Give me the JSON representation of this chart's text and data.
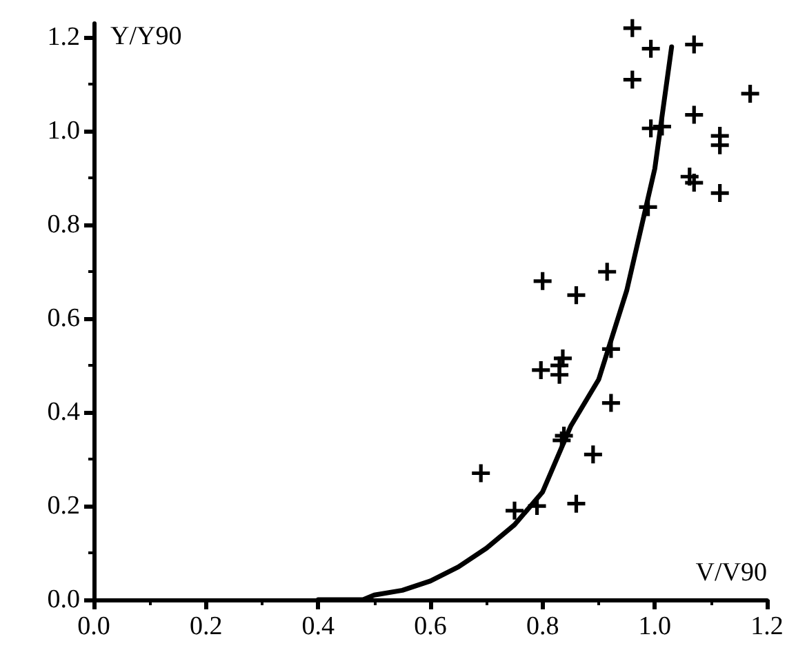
{
  "chart_data": {
    "type": "scatter",
    "xlabel": "V/V90",
    "ylabel": "Y/Y90",
    "grid": false,
    "xlim": [
      0,
      1.2
    ],
    "ylim": [
      0,
      1.23
    ],
    "xticks": [
      {
        "value": 0,
        "label": "0.0"
      },
      {
        "value": 0.2,
        "label": "0.2"
      },
      {
        "value": 0.4,
        "label": "0.4"
      },
      {
        "value": 0.6,
        "label": "0.6"
      },
      {
        "value": 0.8,
        "label": "0.8"
      },
      {
        "value": 1.0,
        "label": "1.0"
      },
      {
        "value": 1.2,
        "label": "1.2"
      }
    ],
    "yticks": [
      {
        "value": 0,
        "label": "0.0"
      },
      {
        "value": 0.2,
        "label": "0.2"
      },
      {
        "value": 0.4,
        "label": "0.4"
      },
      {
        "value": 0.6,
        "label": "0.6"
      },
      {
        "value": 0.8,
        "label": "0.8"
      },
      {
        "value": 1.0,
        "label": "1.0"
      },
      {
        "value": 1.2,
        "label": "1.2"
      }
    ],
    "series": [
      {
        "color": "#000000",
        "marker": "cross",
        "x": [
          0.8,
          0.86,
          0.915,
          0.797,
          0.836,
          0.83,
          0.83,
          0.922,
          0.922,
          0.834,
          0.838,
          0.89,
          0.69,
          0.75,
          0.79,
          0.86,
          0.96,
          0.993,
          1.07,
          0.96,
          1.17,
          0.993,
          1.013,
          1.07,
          1.116,
          1.116,
          1.062,
          1.07,
          1.116,
          0.988
        ],
        "values": [
          0.68,
          0.65,
          0.7,
          0.49,
          0.515,
          0.5,
          0.48,
          0.535,
          0.42,
          0.34,
          0.35,
          0.31,
          0.27,
          0.19,
          0.2,
          0.205,
          1.22,
          1.176,
          1.185,
          1.11,
          1.08,
          1.006,
          1.01,
          1.035,
          0.99,
          0.97,
          0.903,
          0.89,
          0.868,
          0.838
        ]
      },
      {
        "type": "line",
        "color": "#000000",
        "marker": "none",
        "line_style": "solid",
        "x": [
          0.4,
          0.48,
          0.5,
          0.55,
          0.6,
          0.65,
          0.7,
          0.75,
          0.8,
          0.85,
          0.9,
          0.95,
          1.0,
          1.03
        ],
        "values": [
          0,
          0,
          0.01,
          0.02,
          0.04,
          0.07,
          0.11,
          0.16,
          0.23,
          0.37,
          0.47,
          0.66,
          0.92,
          1.18
        ]
      }
    ]
  }
}
